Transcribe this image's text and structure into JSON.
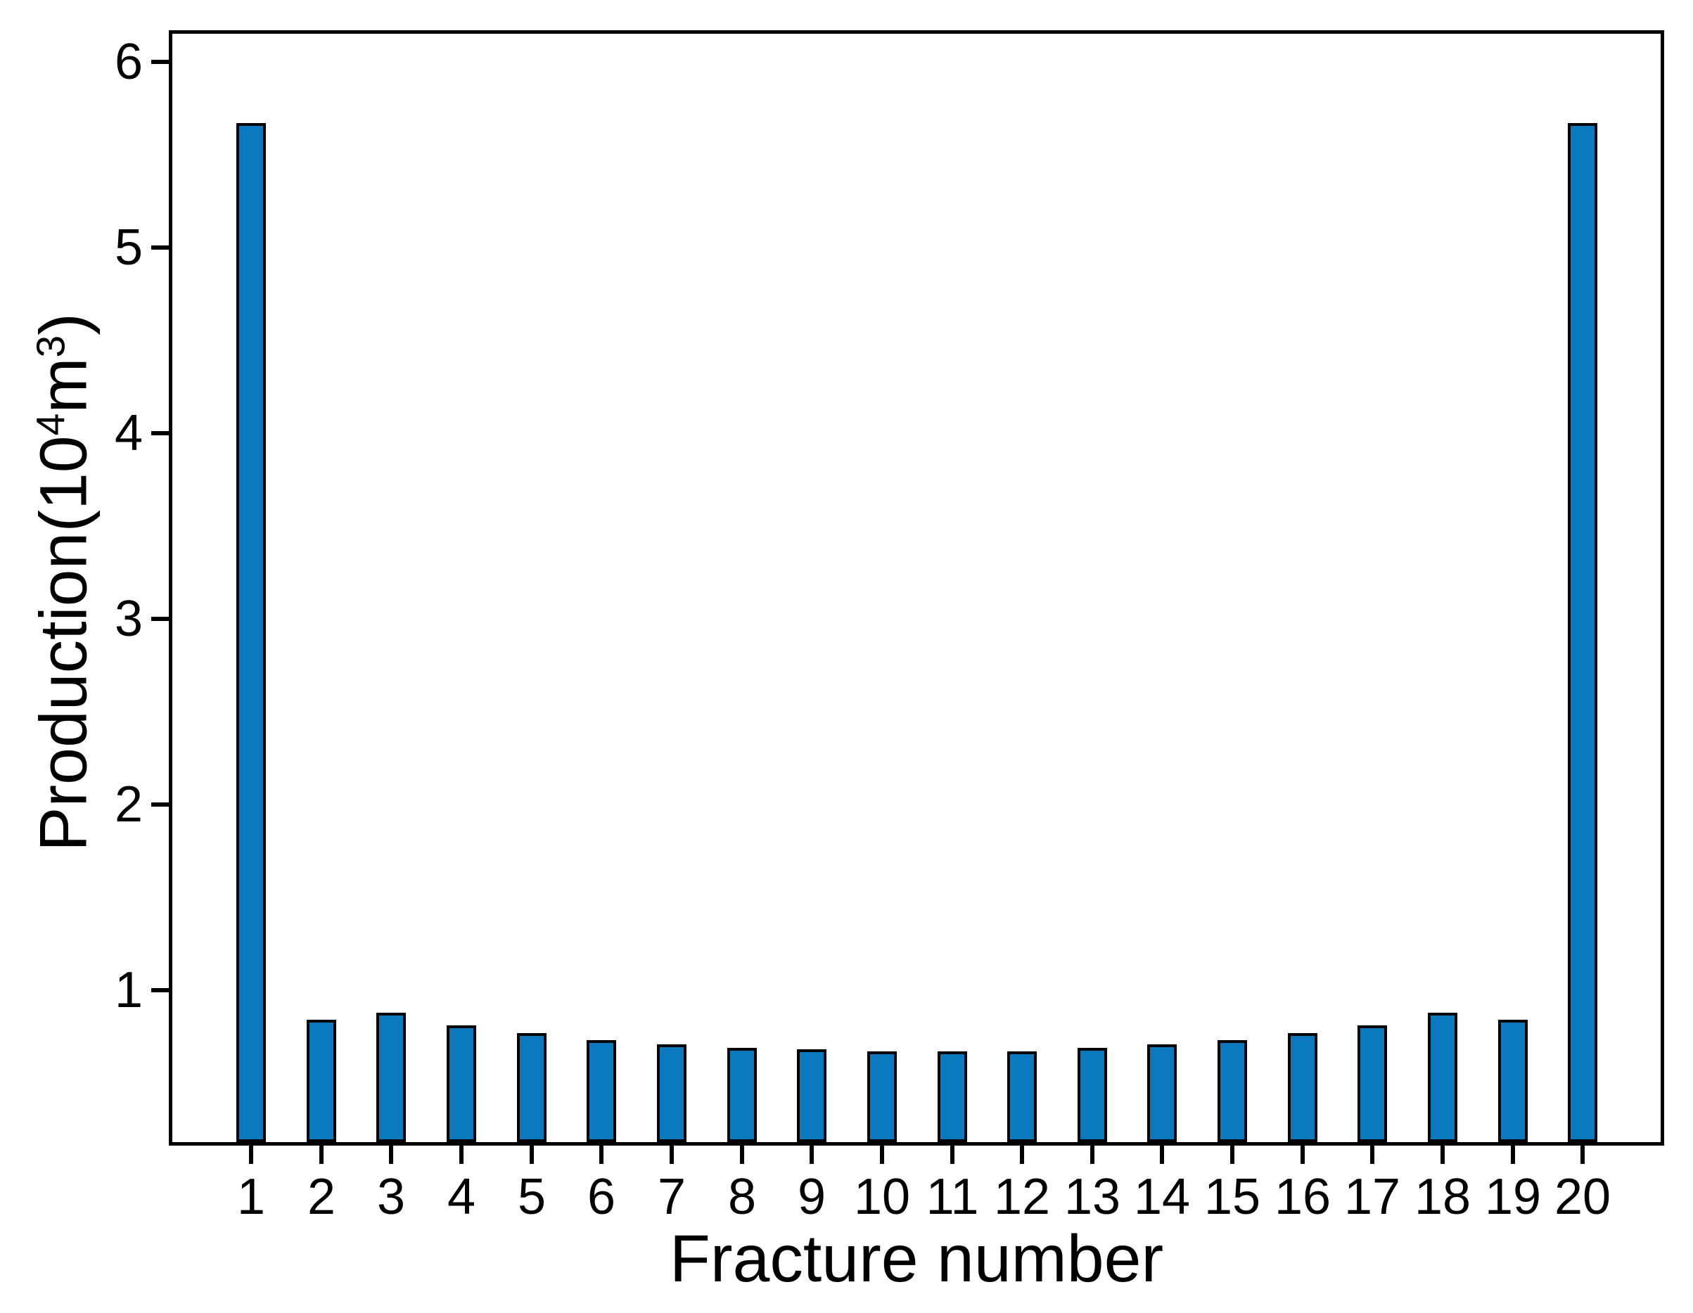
{
  "figure": {
    "background": "#ffffff"
  },
  "chart_data": {
    "type": "bar",
    "title": "",
    "xlabel": "Fracture number",
    "ylabel": "Production(10⁴m³)",
    "ylabel_parts": [
      {
        "text": "Production(10",
        "superscript": false
      },
      {
        "text": "4",
        "superscript": true
      },
      {
        "text": "m",
        "superscript": false
      },
      {
        "text": "3",
        "superscript": true
      },
      {
        "text": ")",
        "superscript": false
      }
    ],
    "categories": [
      "1",
      "2",
      "3",
      "4",
      "5",
      "6",
      "7",
      "8",
      "9",
      "10",
      "11",
      "12",
      "13",
      "14",
      "15",
      "16",
      "17",
      "18",
      "19",
      "20"
    ],
    "values": [
      5.67,
      0.84,
      0.88,
      0.81,
      0.77,
      0.73,
      0.71,
      0.69,
      0.68,
      0.67,
      0.67,
      0.67,
      0.69,
      0.71,
      0.73,
      0.77,
      0.81,
      0.88,
      0.84,
      5.67
    ],
    "yticks": [
      "1",
      "2",
      "3",
      "4",
      "5",
      "6"
    ],
    "ylim": [
      0.19,
      6.15
    ],
    "grid": false,
    "legend": null,
    "bar_color": "#0b79bd",
    "bar_edge_color": "#000000",
    "axis_color": "#000000",
    "text_color": "#000000"
  }
}
